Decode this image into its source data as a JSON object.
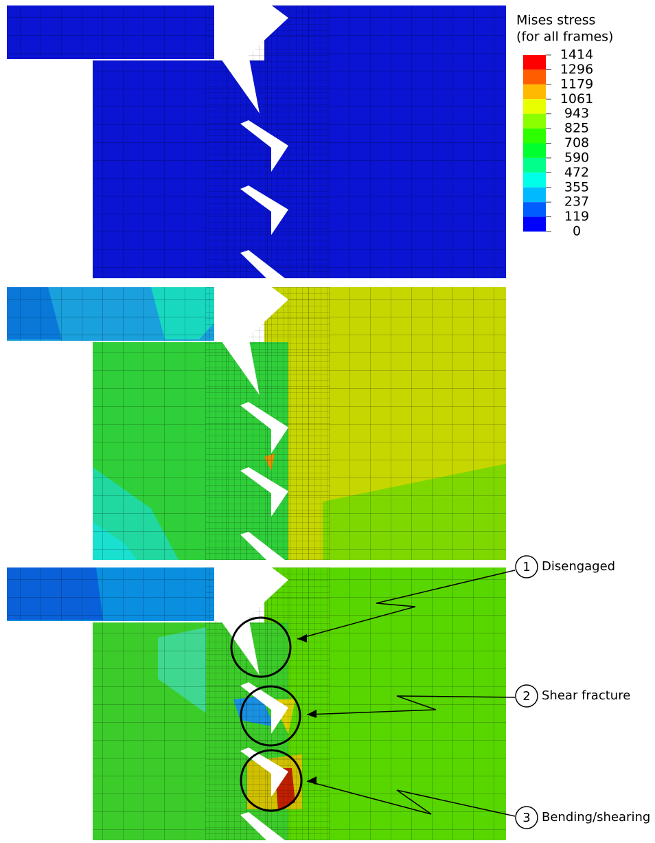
{
  "legend": {
    "title_lines": [
      "Mises stress",
      "(for all frames)"
    ],
    "labels": [
      "1414",
      "1296",
      "1179",
      "1061",
      "943",
      "825",
      "708",
      "590",
      "472",
      "355",
      "237",
      "119",
      "0"
    ],
    "colors": [
      "#ff0000",
      "#ff5d00",
      "#ffb900",
      "#e8ff00",
      "#8bff00",
      "#2eff00",
      "#00ff2e",
      "#00ff8b",
      "#00ffe8",
      "#00b9ff",
      "#005dff",
      "#0000ff"
    ]
  },
  "annotations": [
    {
      "number": "1",
      "label": "Disengaged"
    },
    {
      "number": "2",
      "label": "Shear fracture"
    },
    {
      "number": "3",
      "label": "Bending/shearing"
    }
  ]
}
